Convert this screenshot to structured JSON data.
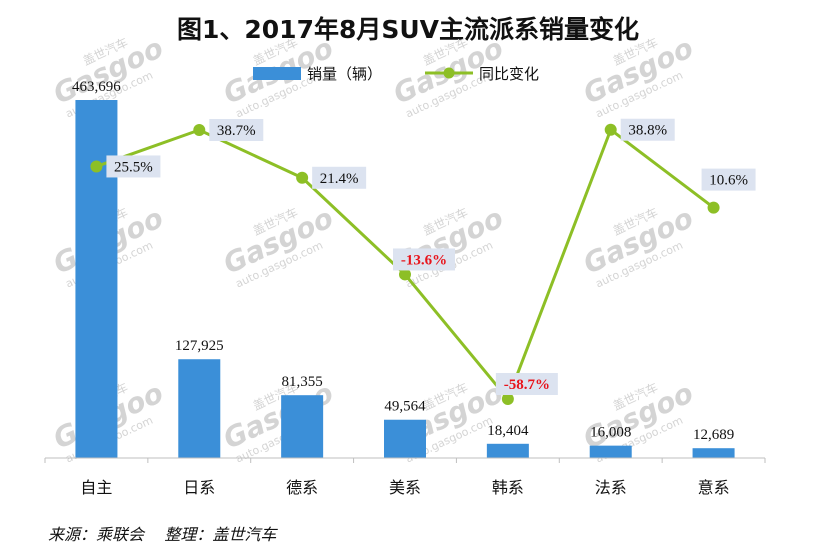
{
  "chart_data": {
    "type": "bar",
    "title": "图1、2017年8月SUV主流派系销量变化",
    "categories": [
      "自主",
      "日系",
      "德系",
      "美系",
      "韩系",
      "法系",
      "意系"
    ],
    "series": [
      {
        "name": "销量（辆）",
        "type": "bar",
        "values": [
          463696,
          127925,
          81355,
          49564,
          18404,
          16008,
          12689
        ],
        "labels": [
          "463,696",
          "127,925",
          "81,355",
          "49,564",
          "18,404",
          "16,008",
          "12,689"
        ],
        "color": "#3B8FD8"
      },
      {
        "name": "同比变化",
        "type": "line",
        "values": [
          25.5,
          38.7,
          21.4,
          -13.6,
          -58.7,
          38.8,
          10.6
        ],
        "labels": [
          "25.5%",
          "38.7%",
          "21.4%",
          "-13.6%",
          "-58.7%",
          "38.8%",
          "10.6%"
        ],
        "color": "#8DBF26"
      }
    ],
    "ylim": [
      0,
      463696
    ],
    "y2lim": [
      -80,
      60
    ],
    "legend_position": "top",
    "grid": false,
    "negative_label_color": "#E8141C",
    "label_box_color": "#DCE3F0"
  },
  "watermark": {
    "brand_cn": "盖世汽车",
    "brand_en": "Gasgoo",
    "url": "auto.gasgoo.com"
  },
  "source_note": "来源：乘联会    整理：盖世汽车"
}
